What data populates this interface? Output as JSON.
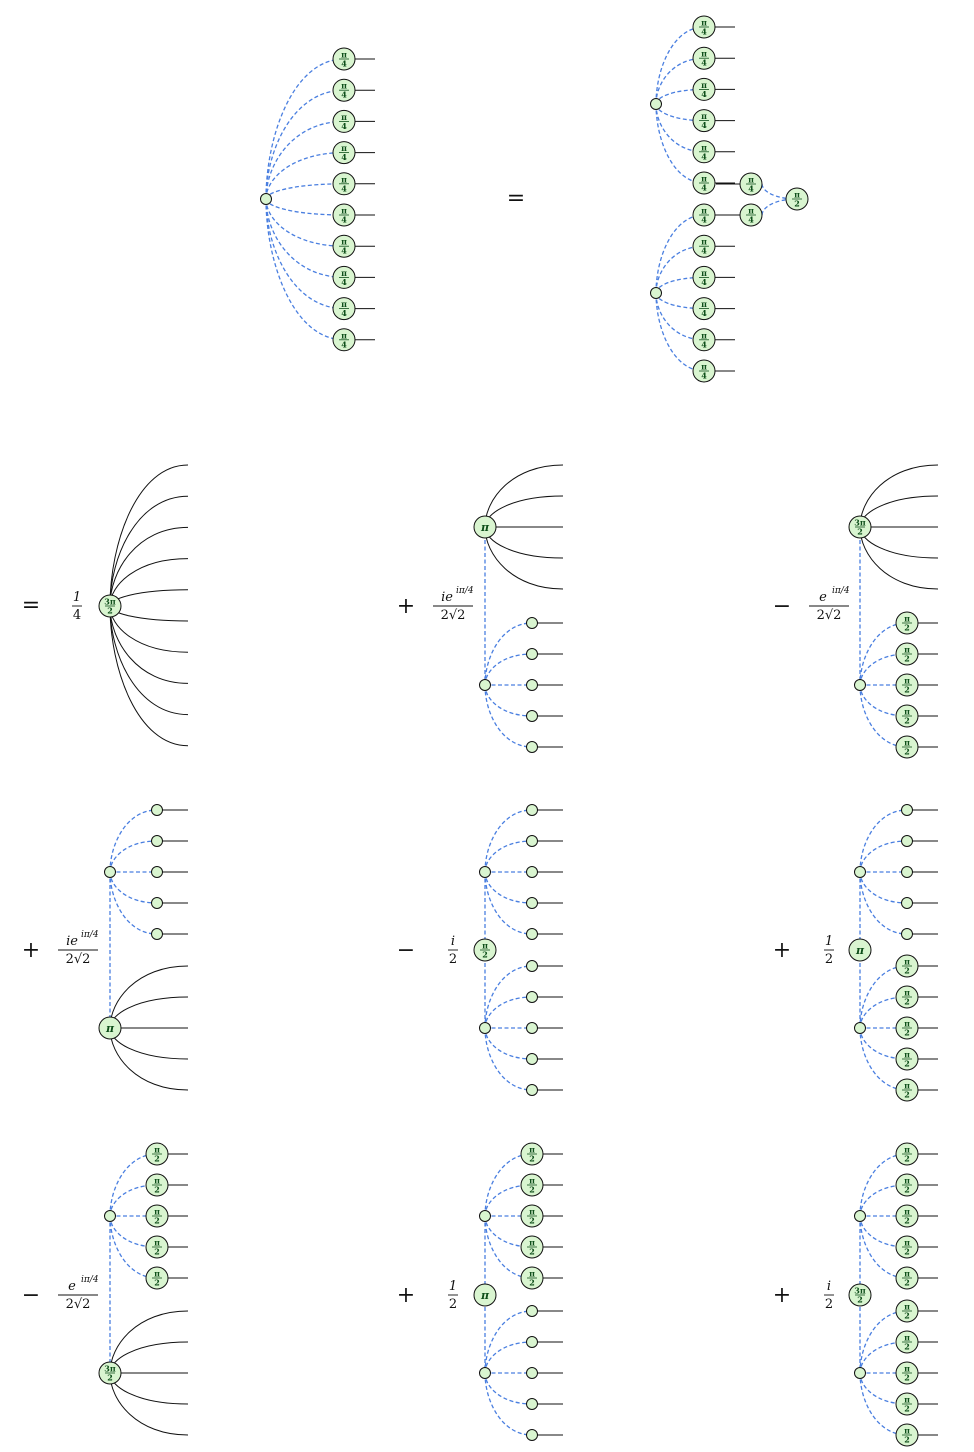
{
  "colors": {
    "spider_fill": "#d9f5d0",
    "spider_stroke": "#111111",
    "hadamard_edge": "#4a7fe0",
    "wire": "#111111",
    "phase_text": "#0e4f1a"
  },
  "edge_types": {
    "dashed": "hadamard-edge",
    "solid": "plain-wire"
  },
  "phases": {
    "pi_over_4": {
      "num": "π",
      "den": "4"
    },
    "pi_over_2": {
      "num": "π",
      "den": "2"
    },
    "three_pi_over_2": {
      "num": "3π",
      "den": "2"
    },
    "pi": "π"
  },
  "equation": {
    "top_equals": "=",
    "row1_equals": "=",
    "terms": [
      {
        "sign": "",
        "coefficient": {
          "num": "1",
          "den": "4"
        }
      },
      {
        "sign": "+",
        "coefficient": {
          "num": "ie",
          "sup": "iπ/4",
          "den": "2√2"
        }
      },
      {
        "sign": "−",
        "coefficient": {
          "num": "e",
          "sup": "iπ/4",
          "den": "2√2"
        }
      },
      {
        "sign": "+",
        "coefficient": {
          "num": "ie",
          "sup": "iπ/4",
          "den": "2√2"
        }
      },
      {
        "sign": "−",
        "coefficient": {
          "num": "i",
          "den": "2"
        }
      },
      {
        "sign": "+",
        "coefficient": {
          "num": "1",
          "den": "2"
        }
      },
      {
        "sign": "−",
        "coefficient": {
          "num": "e",
          "sup": "iπ/4",
          "den": "2√2"
        }
      },
      {
        "sign": "+",
        "coefficient": {
          "num": "1",
          "den": "2"
        }
      },
      {
        "sign": "+",
        "coefficient": {
          "num": "i",
          "den": "2"
        }
      }
    ]
  }
}
